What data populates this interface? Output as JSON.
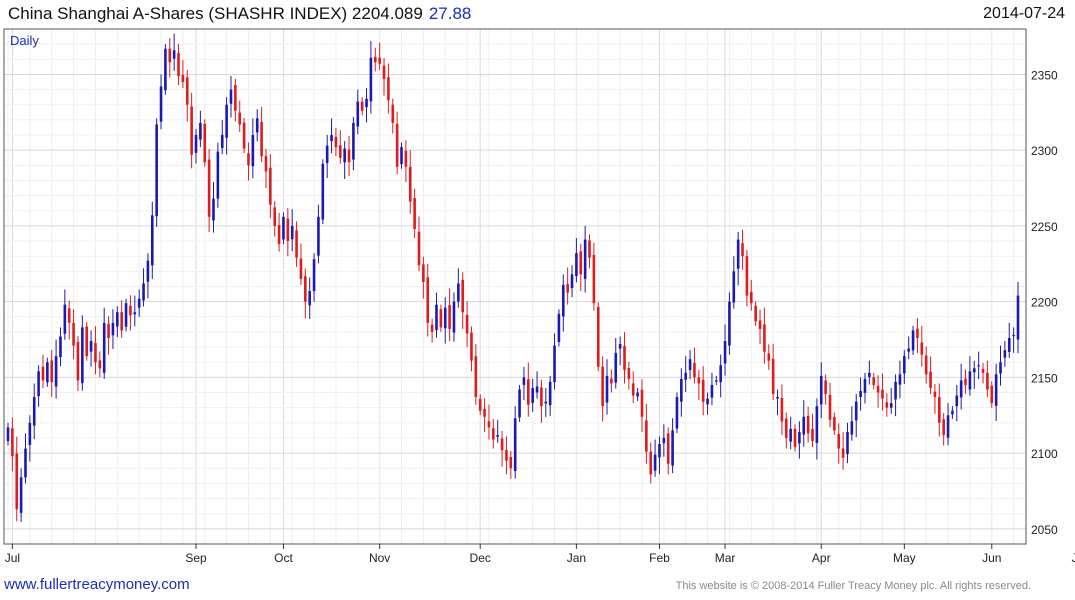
{
  "header": {
    "title": "China Shanghai A-Shares (SHASHR INDEX) 2204.089",
    "change": "27.88",
    "date": "2014-07-24"
  },
  "chart_data": {
    "type": "candlestick",
    "title": "China Shanghai A-Shares (SHASHR INDEX) 2204.089 27.88",
    "period_label": "Daily",
    "ylim": [
      2040,
      2380
    ],
    "y_ticks": [
      2050,
      2100,
      2150,
      2200,
      2250,
      2300,
      2350
    ],
    "month_labels": [
      {
        "label": "Jul",
        "index": 1
      },
      {
        "label": "Sep",
        "index": 43
      },
      {
        "label": "Oct",
        "index": 63
      },
      {
        "label": "Nov",
        "index": 85
      },
      {
        "label": "Dec",
        "index": 108
      },
      {
        "label": "Jan",
        "index": 130
      },
      {
        "label": "Feb",
        "index": 149
      },
      {
        "label": "Mar",
        "index": 164
      },
      {
        "label": "Apr",
        "index": 186
      },
      {
        "label": "May",
        "index": 205
      },
      {
        "label": "Jun",
        "index": 225
      },
      {
        "label": "Jul",
        "index": 245
      }
    ],
    "series_colors": {
      "up": "#1a1ab0",
      "down": "#e01b1b",
      "grid": "#d8d8d8"
    },
    "grid": true,
    "closes": [
      2117,
      2098,
      2063,
      2084,
      2103,
      2120,
      2137,
      2154,
      2148,
      2160,
      2147,
      2164,
      2177,
      2198,
      2186,
      2171,
      2148,
      2183,
      2164,
      2174,
      2160,
      2156,
      2186,
      2176,
      2186,
      2193,
      2181,
      2199,
      2191,
      2193,
      2202,
      2212,
      2227,
      2257,
      2317,
      2342,
      2367,
      2358,
      2366,
      2349,
      2345,
      2330,
      2297,
      2310,
      2318,
      2292,
      2256,
      2268,
      2299,
      2310,
      2330,
      2340,
      2326,
      2317,
      2301,
      2290,
      2310,
      2321,
      2296,
      2286,
      2264,
      2250,
      2238,
      2256,
      2240,
      2250,
      2229,
      2215,
      2200,
      2207,
      2228,
      2256,
      2291,
      2303,
      2310,
      2302,
      2295,
      2301,
      2292,
      2318,
      2332,
      2326,
      2334,
      2361,
      2358,
      2357,
      2347,
      2333,
      2318,
      2289,
      2302,
      2289,
      2266,
      2248,
      2224,
      2213,
      2186,
      2180,
      2198,
      2183,
      2196,
      2182,
      2200,
      2212,
      2193,
      2179,
      2161,
      2137,
      2128,
      2124,
      2117,
      2109,
      2112,
      2102,
      2095,
      2090,
      2123,
      2142,
      2150,
      2132,
      2143,
      2144,
      2131,
      2134,
      2147,
      2171,
      2192,
      2211,
      2206,
      2218,
      2232,
      2218,
      2241,
      2229,
      2199,
      2157,
      2131,
      2151,
      2146,
      2166,
      2172,
      2155,
      2149,
      2138,
      2140,
      2124,
      2101,
      2086,
      2099,
      2106,
      2110,
      2093,
      2115,
      2137,
      2149,
      2153,
      2162,
      2150,
      2146,
      2134,
      2136,
      2145,
      2148,
      2158,
      2174,
      2200,
      2220,
      2241,
      2230,
      2204,
      2199,
      2187,
      2182,
      2167,
      2161,
      2139,
      2137,
      2121,
      2110,
      2116,
      2104,
      2114,
      2124,
      2113,
      2108,
      2131,
      2151,
      2139,
      2122,
      2115,
      2103,
      2097,
      2114,
      2121,
      2134,
      2141,
      2149,
      2153,
      2145,
      2140,
      2136,
      2130,
      2133,
      2147,
      2152,
      2164,
      2169,
      2181,
      2176,
      2165,
      2152,
      2143,
      2137,
      2120,
      2112,
      2125,
      2128,
      2138,
      2148,
      2145,
      2154,
      2156,
      2158,
      2153,
      2142,
      2133,
      2152,
      2160,
      2168,
      2176,
      2178,
      2204
    ]
  },
  "footer": {
    "link": "www.fullertreacymoney.com",
    "note": "This website is © 2008-2014 Fuller Treacy Money plc. All rights reserved."
  }
}
